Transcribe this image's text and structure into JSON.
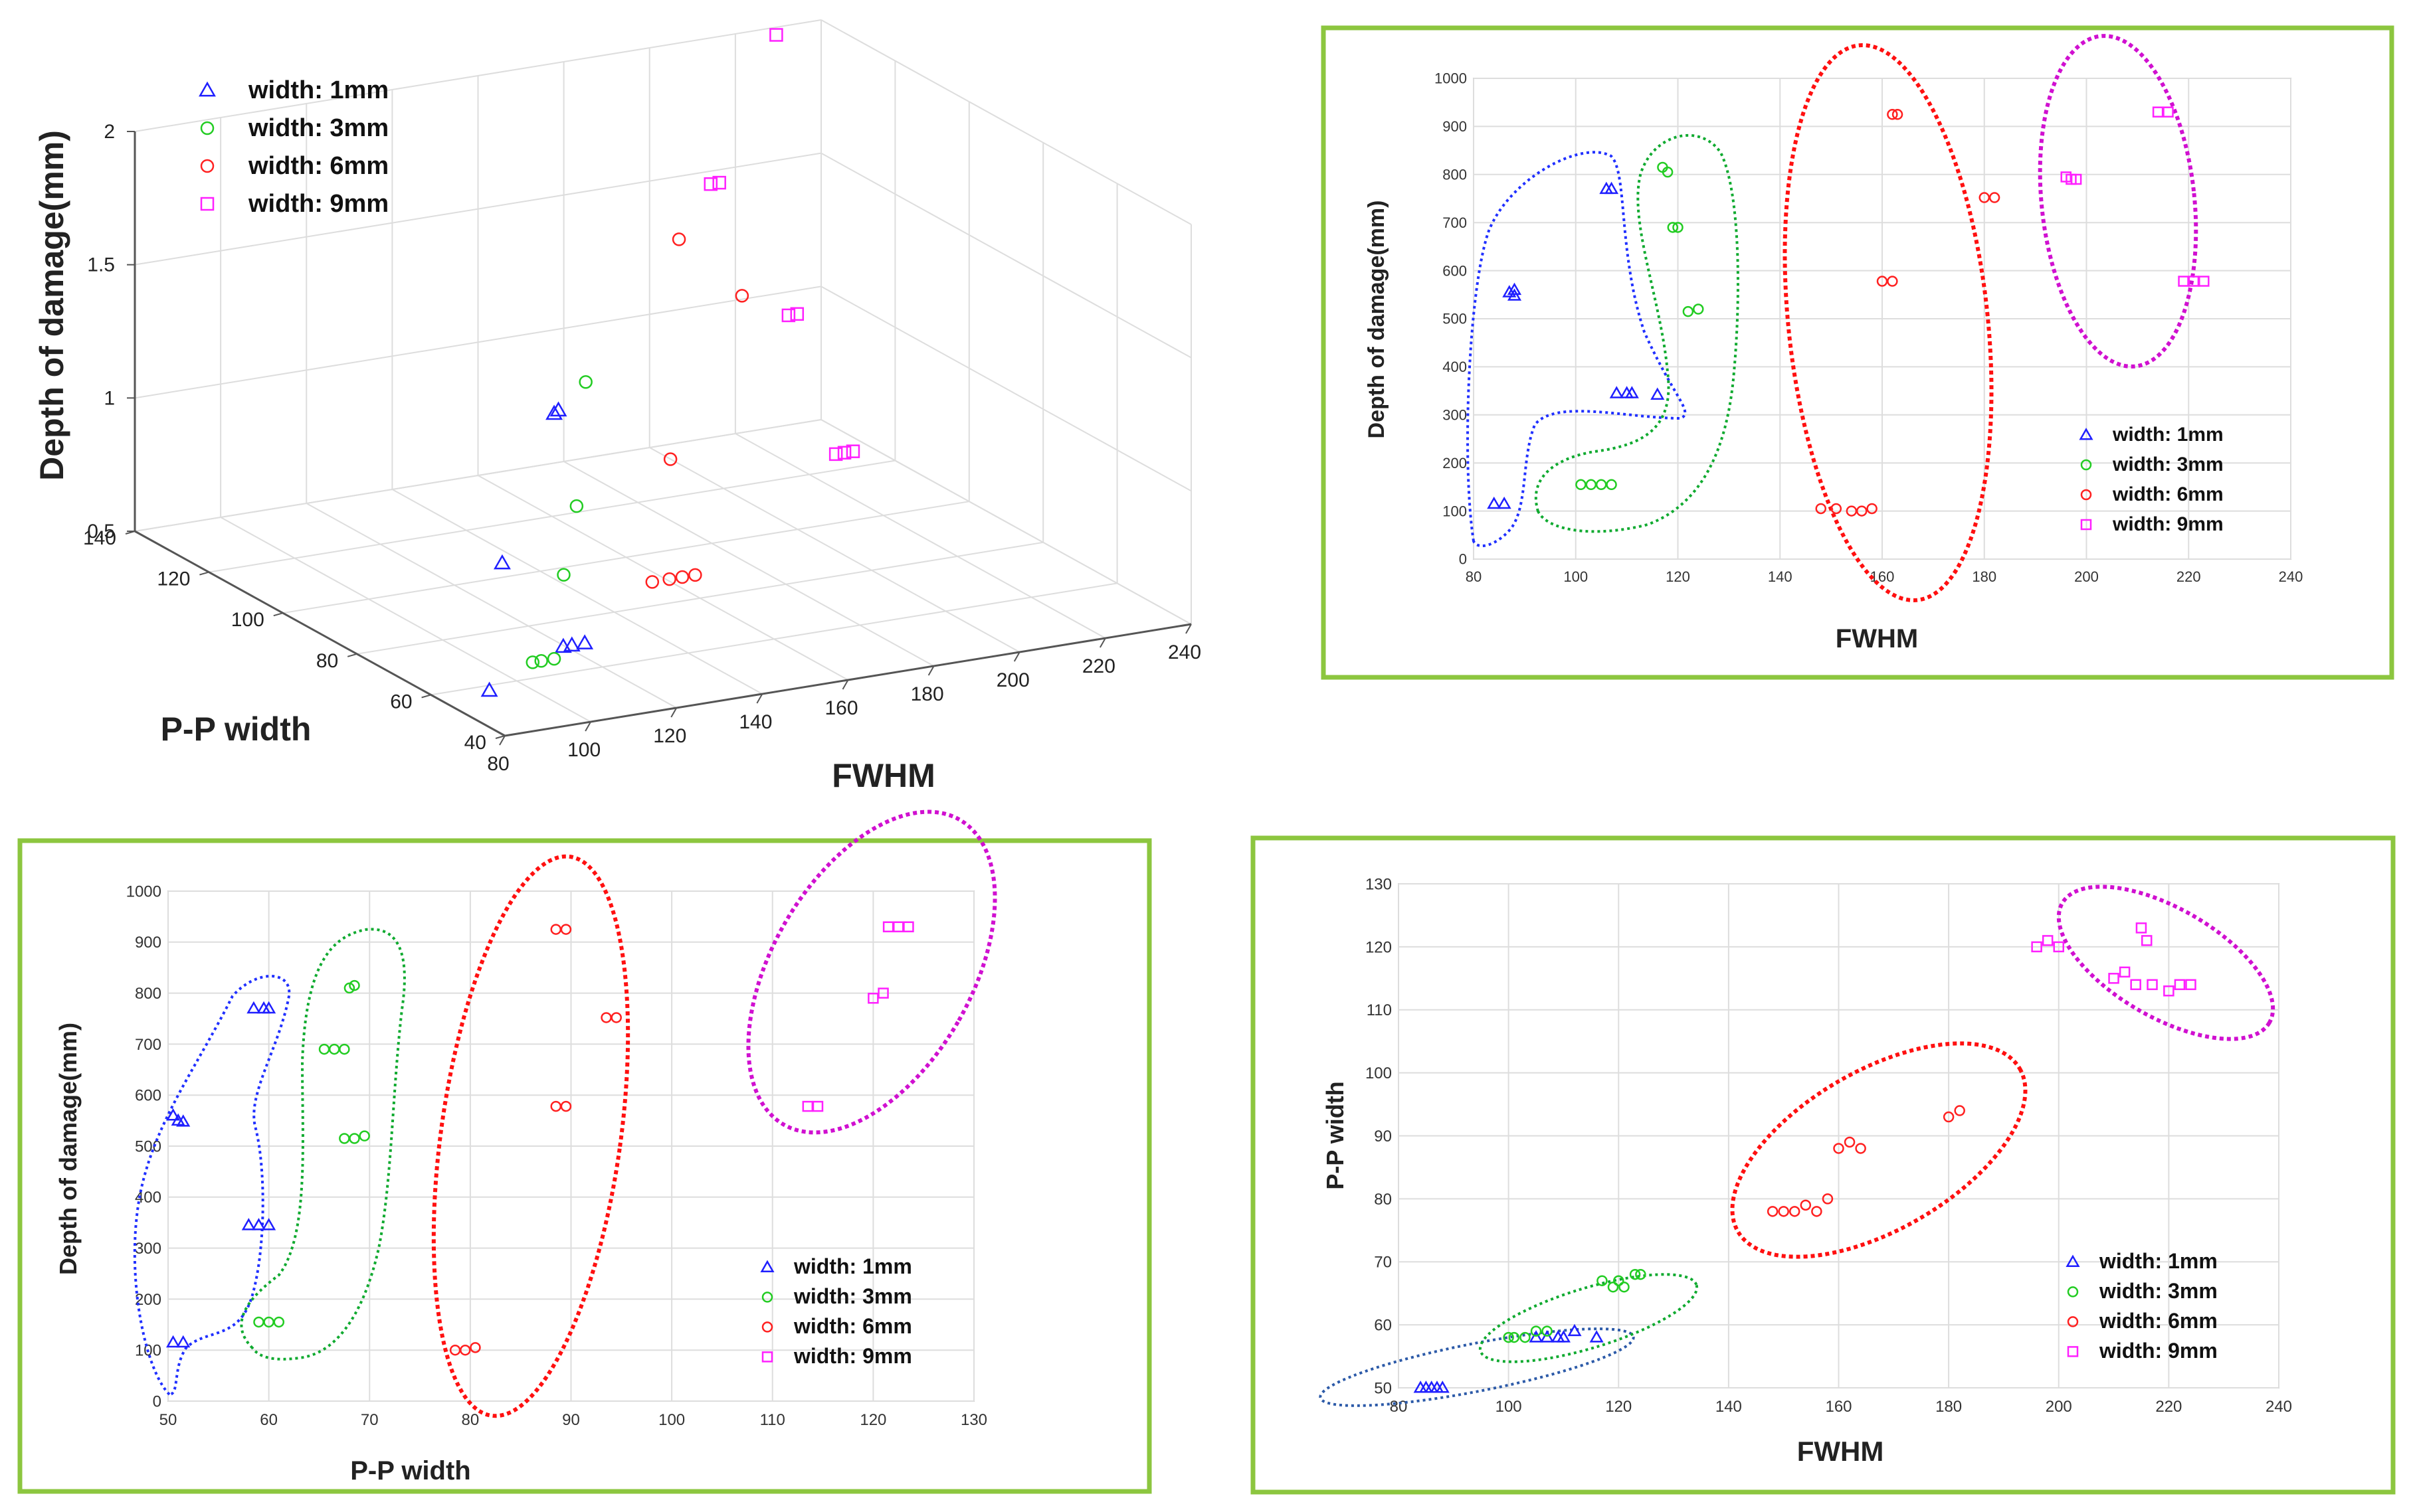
{
  "colors": {
    "blue": "#1f1fff",
    "green": "#22cc22",
    "red": "#ff2020",
    "magenta": "#ff20ff",
    "frame": "#8cc63f",
    "grid": "#dddddd"
  },
  "legend": [
    "width: 1mm",
    "width: 3mm",
    "width: 6mm",
    "width: 9mm"
  ],
  "chart_data": [
    {
      "id": "chart3d",
      "type": "scatter",
      "title": "",
      "xlabel": "FWHM",
      "ylabel": "P-P width",
      "zlabel": "Depth of damage(mm)",
      "xlim": [
        80,
        240
      ],
      "ylim": [
        40,
        140
      ],
      "zlim": [
        0.5,
        2
      ],
      "xticks": [
        "80",
        "100",
        "120",
        "140",
        "160",
        "180",
        "200",
        "220",
        "240"
      ],
      "yticks": [
        "40",
        "60",
        "80",
        "100",
        "120",
        "140"
      ],
      "zticks": [
        "0.5",
        "1",
        "1.5",
        "2"
      ],
      "series": [
        {
          "name": "width: 1mm",
          "marker": "triangle",
          "points": [
            [
              85,
              50,
              0.58
            ],
            [
              110,
              59,
              0.61
            ],
            [
              112,
              59,
              0.61
            ],
            [
              115,
              59,
              0.61
            ],
            [
              88,
              50,
              1.05
            ],
            [
              107,
              58,
              1.5
            ],
            [
              108,
              58,
              1.51
            ]
          ]
        },
        {
          "name": "width: 3mm",
          "marker": "circle",
          "points": [
            [
              102,
              58,
              0.58
            ],
            [
              104,
              58,
              0.58
            ],
            [
              107,
              58,
              0.58
            ],
            [
              117,
              67,
              0.8
            ],
            [
              120,
              67,
              1.05
            ],
            [
              123,
              68,
              1.5
            ]
          ]
        },
        {
          "name": "width: 6mm",
          "marker": "circle",
          "points": [
            [
              148,
              79,
              0.6
            ],
            [
              152,
              79,
              0.6
            ],
            [
              155,
              79,
              0.6
            ],
            [
              158,
              79,
              0.6
            ],
            [
              160,
              88,
              0.96
            ],
            [
              181,
              93,
              1.48
            ],
            [
              162,
              88,
              1.78
            ]
          ]
        },
        {
          "name": "width: 9mm",
          "marker": "square",
          "points": [
            [
              221,
              114,
              0.62
            ],
            [
              223,
              114,
              0.62
            ],
            [
              225,
              114,
              0.62
            ],
            [
              216,
              121,
              1.1
            ],
            [
              218,
              121,
              1.1
            ],
            [
              197,
              120,
              1.65
            ],
            [
              199,
              120,
              1.65
            ],
            [
              214,
              122,
              2.15
            ]
          ]
        }
      ]
    },
    {
      "id": "chartFD",
      "type": "scatter",
      "xlabel": "FWHM",
      "ylabel": "Depth of damage(mm)",
      "xlim": [
        80,
        240
      ],
      "ylim": [
        0,
        1000
      ],
      "xticks": [
        "80",
        "100",
        "120",
        "140",
        "160",
        "180",
        "200",
        "220",
        "240"
      ],
      "yticks": [
        "0",
        "100",
        "200",
        "300",
        "400",
        "500",
        "600",
        "700",
        "800",
        "900",
        "1000"
      ],
      "series": [
        {
          "name": "width: 1mm",
          "marker": "triangle",
          "points": [
            [
              84,
              115
            ],
            [
              86,
              115
            ],
            [
              87,
              555
            ],
            [
              88,
              560
            ],
            [
              88,
              548
            ],
            [
              106,
              770
            ],
            [
              107,
              770
            ],
            [
              108,
              345
            ],
            [
              110,
              345
            ],
            [
              111,
              345
            ],
            [
              116,
              342
            ]
          ]
        },
        {
          "name": "width: 3mm",
          "marker": "circle",
          "points": [
            [
              101,
              155
            ],
            [
              103,
              155
            ],
            [
              105,
              155
            ],
            [
              107,
              155
            ],
            [
              117,
              815
            ],
            [
              118,
              805
            ],
            [
              119,
              690
            ],
            [
              120,
              690
            ],
            [
              122,
              515
            ],
            [
              124,
              520
            ]
          ]
        },
        {
          "name": "width: 6mm",
          "marker": "circle",
          "points": [
            [
              148,
              105
            ],
            [
              151,
              105
            ],
            [
              154,
              100
            ],
            [
              156,
              100
            ],
            [
              158,
              105
            ],
            [
              160,
              578
            ],
            [
              162,
              578
            ],
            [
              162,
              925
            ],
            [
              163,
              925
            ],
            [
              180,
              752
            ],
            [
              182,
              752
            ]
          ]
        },
        {
          "name": "width: 9mm",
          "marker": "square",
          "points": [
            [
              196,
              795
            ],
            [
              197,
              790
            ],
            [
              198,
              790
            ],
            [
              214,
              930
            ],
            [
              216,
              930
            ],
            [
              219,
              578
            ],
            [
              221,
              578
            ],
            [
              223,
              578
            ]
          ]
        }
      ]
    },
    {
      "id": "chartPD",
      "type": "scatter",
      "xlabel": "P-P width",
      "ylabel": "Depth of damage(mm)",
      "xlim": [
        50,
        130
      ],
      "ylim": [
        0,
        1000
      ],
      "xticks": [
        "50",
        "60",
        "70",
        "80",
        "90",
        "100",
        "110",
        "120",
        "130"
      ],
      "yticks": [
        "0",
        "100",
        "200",
        "300",
        "400",
        "500",
        "600",
        "700",
        "800",
        "900",
        "1000"
      ],
      "series": [
        {
          "name": "width: 1mm",
          "marker": "triangle",
          "points": [
            [
              50.5,
              115
            ],
            [
              51.5,
              115
            ],
            [
              50.5,
              560
            ],
            [
              51,
              550
            ],
            [
              51.5,
              548
            ],
            [
              58,
              345
            ],
            [
              59,
              345
            ],
            [
              60,
              345
            ],
            [
              58.5,
              770
            ],
            [
              59.5,
              770
            ],
            [
              60,
              770
            ]
          ]
        },
        {
          "name": "width: 3mm",
          "marker": "circle",
          "points": [
            [
              59,
              155
            ],
            [
              60,
              155
            ],
            [
              61,
              155
            ],
            [
              65.5,
              690
            ],
            [
              66.5,
              690
            ],
            [
              67.5,
              690
            ],
            [
              68,
              810
            ],
            [
              68.5,
              815
            ],
            [
              67.5,
              515
            ],
            [
              68.5,
              515
            ],
            [
              69.5,
              520
            ]
          ]
        },
        {
          "name": "width: 6mm",
          "marker": "circle",
          "points": [
            [
              78.5,
              100
            ],
            [
              79.5,
              100
            ],
            [
              80.5,
              105
            ],
            [
              88.5,
              578
            ],
            [
              89.5,
              578
            ],
            [
              88.5,
              925
            ],
            [
              89.5,
              925
            ],
            [
              93.5,
              752
            ],
            [
              94.5,
              752
            ]
          ]
        },
        {
          "name": "width: 9mm",
          "marker": "square",
          "points": [
            [
              113.5,
              578
            ],
            [
              114.5,
              578
            ],
            [
              120,
              790
            ],
            [
              121,
              800
            ],
            [
              121.5,
              930
            ],
            [
              122.5,
              930
            ],
            [
              123.5,
              930
            ]
          ]
        }
      ]
    },
    {
      "id": "chartFP",
      "type": "scatter",
      "xlabel": "FWHM",
      "ylabel": "P-P width",
      "xlim": [
        80,
        240
      ],
      "ylim": [
        50,
        130
      ],
      "xticks": [
        "80",
        "100",
        "120",
        "140",
        "160",
        "180",
        "200",
        "220",
        "240"
      ],
      "yticks": [
        "50",
        "60",
        "70",
        "80",
        "90",
        "100",
        "110",
        "120",
        "130"
      ],
      "series": [
        {
          "name": "width: 1mm",
          "marker": "triangle",
          "points": [
            [
              84,
              50
            ],
            [
              85,
              50
            ],
            [
              86,
              50
            ],
            [
              87,
              50
            ],
            [
              88,
              50
            ],
            [
              105,
              58
            ],
            [
              107,
              58
            ],
            [
              109,
              58
            ],
            [
              110,
              58
            ],
            [
              112,
              59
            ],
            [
              116,
              58
            ]
          ]
        },
        {
          "name": "width: 3mm",
          "marker": "circle",
          "points": [
            [
              100,
              58
            ],
            [
              101,
              58
            ],
            [
              103,
              58
            ],
            [
              105,
              59
            ],
            [
              107,
              59
            ],
            [
              117,
              67
            ],
            [
              119,
              66
            ],
            [
              120,
              67
            ],
            [
              121,
              66
            ],
            [
              123,
              68
            ],
            [
              124,
              68
            ]
          ]
        },
        {
          "name": "width: 6mm",
          "marker": "circle",
          "points": [
            [
              148,
              78
            ],
            [
              150,
              78
            ],
            [
              152,
              78
            ],
            [
              154,
              79
            ],
            [
              156,
              78
            ],
            [
              158,
              80
            ],
            [
              160,
              88
            ],
            [
              162,
              89
            ],
            [
              164,
              88
            ],
            [
              180,
              93
            ],
            [
              182,
              94
            ]
          ]
        },
        {
          "name": "width: 9mm",
          "marker": "square",
          "points": [
            [
              196,
              120
            ],
            [
              198,
              121
            ],
            [
              200,
              120
            ],
            [
              210,
              115
            ],
            [
              212,
              116
            ],
            [
              214,
              114
            ],
            [
              215,
              123
            ],
            [
              216,
              121
            ],
            [
              217,
              114
            ],
            [
              220,
              113
            ],
            [
              222,
              114
            ],
            [
              224,
              114
            ]
          ]
        }
      ]
    }
  ]
}
